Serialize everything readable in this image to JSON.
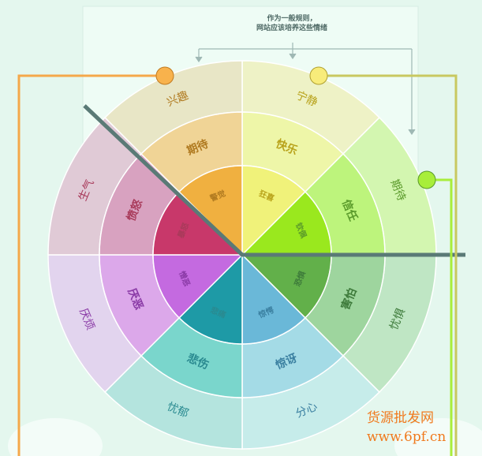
{
  "note": {
    "line1": "作为一般规则，",
    "line2": "网站应该培养这些情绪"
  },
  "watermark": {
    "line1": "货源批发网",
    "line2": "www.6pf.cn"
  },
  "sectors": [
    {
      "outer": "宁静",
      "middle": "快乐",
      "inner": "狂喜",
      "colors": [
        "#eef2c6",
        "#eef6a8",
        "#f0f27a"
      ],
      "text": "#b8a21a"
    },
    {
      "outer": "期待",
      "middle": "信任",
      "inner": "钦佩",
      "colors": [
        "#d3f6b0",
        "#bdf47c",
        "#9ae81e"
      ],
      "text": "#5a9a2a"
    },
    {
      "outer": "忧惧",
      "middle": "害怕",
      "inner": "恐惧",
      "colors": [
        "#bfe6c4",
        "#9ed59e",
        "#62b04a"
      ],
      "text": "#3d7a3a"
    },
    {
      "outer": "分心",
      "middle": "惊讶",
      "inner": "惊愕",
      "colors": [
        "#c6ecea",
        "#a4dbe6",
        "#6ab8d8"
      ],
      "text": "#3a7fa0"
    },
    {
      "outer": "忧郁",
      "middle": "悲伤",
      "inner": "悲痛",
      "colors": [
        "#b4e4de",
        "#7ad6cc",
        "#1e9aa6"
      ],
      "text": "#2a8a90"
    },
    {
      "outer": "厌烦",
      "middle": "厌恶",
      "inner": "憎恶",
      "colors": [
        "#e2d4ee",
        "#dca8ea",
        "#c46ae0"
      ],
      "text": "#8a3aa6"
    },
    {
      "outer": "生气",
      "middle": "愤怒",
      "inner": "暴怒",
      "colors": [
        "#e0cad6",
        "#d8a2c0",
        "#c8386a"
      ],
      "text": "#a83a5a"
    },
    {
      "outer": "兴趣",
      "middle": "期待",
      "inner": "警觉",
      "colors": [
        "#e8e6c6",
        "#f0d496",
        "#f0b040"
      ],
      "text": "#b07a20"
    }
  ],
  "accents": {
    "orange": "#f5a84a",
    "yellow": "#f8ec7a",
    "green": "#a8ee3a",
    "olive": "#c8c860",
    "divider": "#5a7a76"
  }
}
